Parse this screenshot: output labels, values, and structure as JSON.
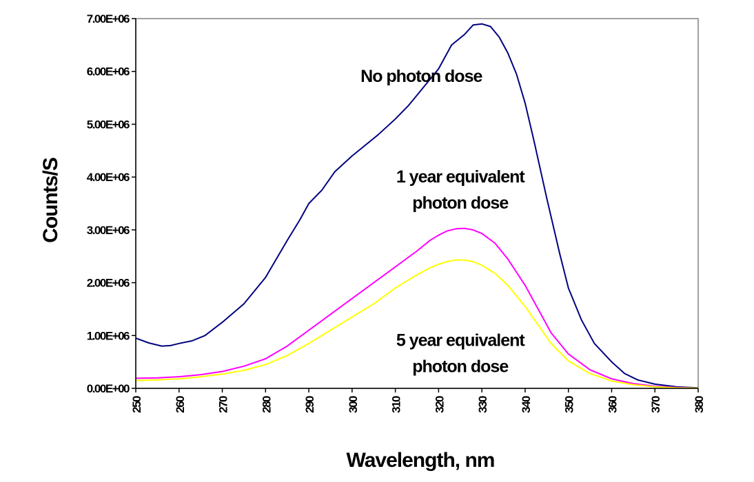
{
  "chart_data": {
    "type": "line",
    "xlabel": "Wavelength, nm",
    "ylabel": "Counts/S",
    "xlim": [
      250,
      380
    ],
    "ylim": [
      0,
      7000000
    ],
    "x_ticks": [
      "250",
      "260",
      "270",
      "280",
      "290",
      "300",
      "310",
      "320",
      "330",
      "340",
      "350",
      "360",
      "370",
      "380"
    ],
    "y_ticks": [
      "0.00E+00",
      "1.00E+06",
      "2.00E+06",
      "3.00E+06",
      "4.00E+06",
      "5.00E+06",
      "6.00E+06",
      "7.00E+06"
    ],
    "grid": false,
    "legend": "none",
    "annotations": [
      {
        "lines": [
          "No photon dose"
        ],
        "x": 316,
        "y": 5800000
      },
      {
        "lines": [
          "1 year equivalent",
          "photon dose"
        ],
        "x": 325,
        "y": 3900000
      },
      {
        "lines": [
          "5 year equivalent",
          "photon dose"
        ],
        "x": 325,
        "y": 800000
      }
    ],
    "series": [
      {
        "color": "#000080",
        "x": [
          250,
          253,
          256,
          258,
          260,
          263,
          266,
          270,
          275,
          280,
          285,
          288,
          290,
          293,
          296,
          300,
          303,
          306,
          310,
          313,
          316,
          320,
          323,
          326,
          328,
          330,
          332,
          334,
          336,
          338,
          340,
          342,
          345,
          348,
          350,
          353,
          356,
          360,
          363,
          366,
          370,
          375,
          380
        ],
        "y": [
          950000,
          860000,
          800000,
          810000,
          850000,
          900000,
          1000000,
          1250000,
          1600000,
          2100000,
          2800000,
          3200000,
          3500000,
          3750000,
          4100000,
          4400000,
          4600000,
          4800000,
          5100000,
          5350000,
          5650000,
          6050000,
          6500000,
          6700000,
          6880000,
          6900000,
          6850000,
          6650000,
          6350000,
          5950000,
          5400000,
          4700000,
          3600000,
          2550000,
          1900000,
          1300000,
          850000,
          500000,
          280000,
          160000,
          80000,
          30000,
          10000
        ]
      },
      {
        "color": "#FF00FF",
        "x": [
          250,
          255,
          260,
          265,
          270,
          275,
          280,
          285,
          290,
          295,
          300,
          305,
          310,
          315,
          318,
          320,
          322,
          324,
          326,
          328,
          330,
          333,
          336,
          340,
          343,
          346,
          350,
          355,
          360,
          365,
          370,
          375,
          380
        ],
        "y": [
          190000,
          200000,
          220000,
          260000,
          320000,
          420000,
          560000,
          800000,
          1100000,
          1400000,
          1700000,
          2000000,
          2300000,
          2600000,
          2800000,
          2900000,
          2980000,
          3020000,
          3030000,
          3000000,
          2930000,
          2750000,
          2450000,
          1950000,
          1500000,
          1050000,
          650000,
          350000,
          180000,
          90000,
          40000,
          15000,
          5000
        ]
      },
      {
        "color": "#FFFF00",
        "x": [
          250,
          255,
          260,
          265,
          270,
          275,
          280,
          285,
          290,
          295,
          300,
          305,
          310,
          315,
          318,
          320,
          322,
          324,
          326,
          328,
          330,
          333,
          336,
          340,
          343,
          346,
          350,
          355,
          360,
          365,
          370,
          375,
          380
        ],
        "y": [
          150000,
          160000,
          180000,
          220000,
          270000,
          340000,
          450000,
          620000,
          850000,
          1100000,
          1350000,
          1600000,
          1900000,
          2150000,
          2280000,
          2350000,
          2400000,
          2430000,
          2430000,
          2400000,
          2330000,
          2180000,
          1950000,
          1550000,
          1200000,
          850000,
          520000,
          280000,
          140000,
          70000,
          30000,
          10000,
          5000
        ]
      }
    ]
  }
}
